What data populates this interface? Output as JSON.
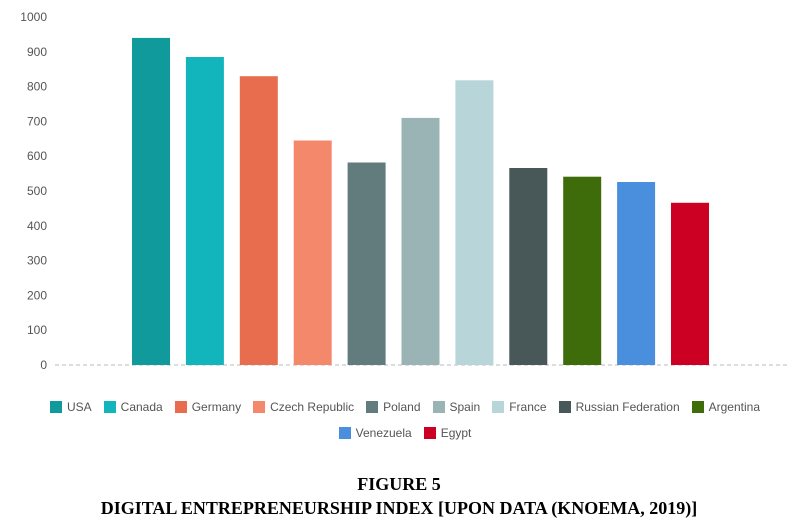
{
  "chart_data": {
    "type": "bar",
    "categories": [
      "USA",
      "Canada",
      "Germany",
      "Czech Republic",
      "Poland",
      "Spain",
      "France",
      "Russian Federation",
      "Argentina",
      "Venezuela",
      "Egypt"
    ],
    "values": [
      940,
      885,
      830,
      645,
      582,
      710,
      818,
      566,
      541,
      526,
      466
    ],
    "colors": [
      "#109a9c",
      "#13b5bd",
      "#e86d4f",
      "#f3886b",
      "#627b7c",
      "#9ab4b5",
      "#b8d5da",
      "#485859",
      "#3f6c0b",
      "#4a8fdd",
      "#cc0022"
    ],
    "yticks": [
      "0",
      "100",
      "200",
      "300",
      "400",
      "500",
      "600",
      "700",
      "800",
      "900",
      "1000"
    ],
    "ylim": [
      0,
      1000
    ],
    "grid": false,
    "legend_position": "bottom"
  },
  "caption": {
    "figure": "FIGURE 5",
    "title": "DIGITAL ENTREPRENEURSHIP INDEX [UPON DATA (KNOEMA, 2019)]"
  }
}
